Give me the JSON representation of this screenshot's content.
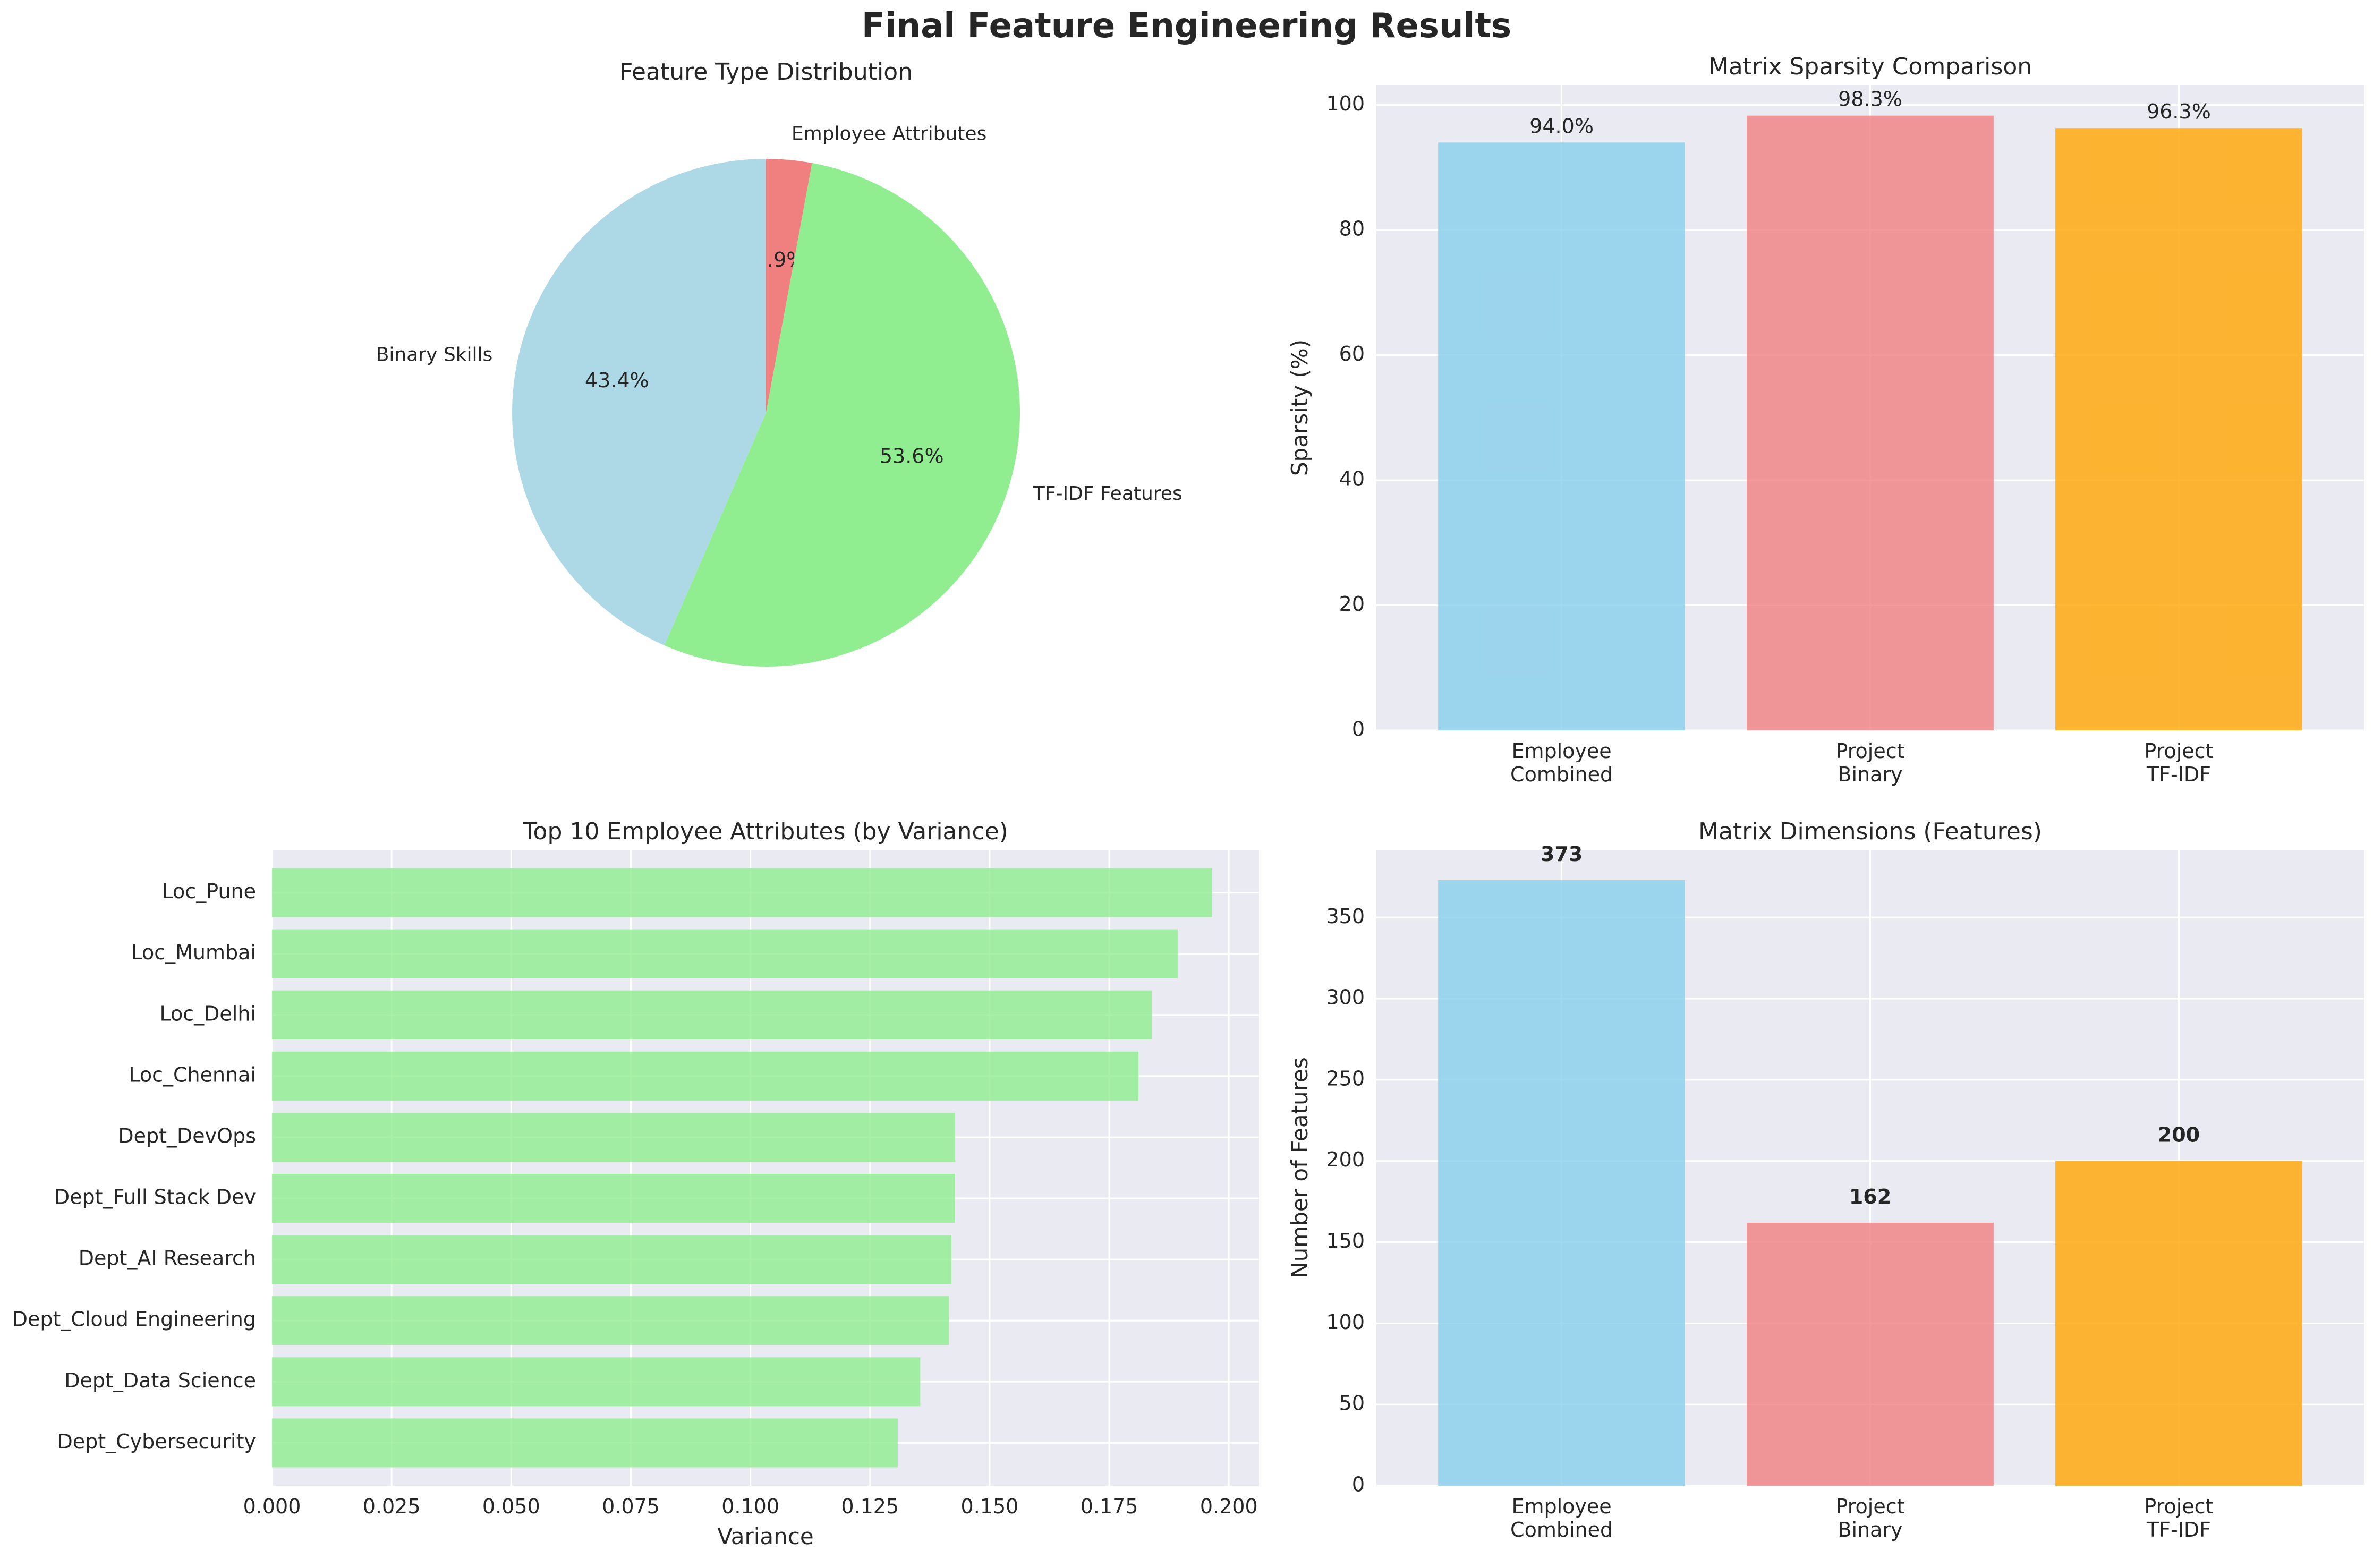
{
  "suptitle": "Final Feature Engineering Results",
  "colors": {
    "panel_bg": "#EAEAF2",
    "grid": "#FFFFFF",
    "skyblue": "#87CEEB",
    "lightcoral": "#F08080",
    "orange": "#FFA500",
    "lightgreen": "#90EE90",
    "lightblue": "#ADD8E6"
  },
  "chart_data": [
    {
      "type": "pie",
      "title": "Feature Type Distribution",
      "labels": [
        "Employee Attributes",
        "TF-IDF Features",
        "Binary Skills"
      ],
      "values": [
        2.9,
        53.6,
        43.4
      ],
      "pct_labels": [
        "2.9%",
        "53.6%",
        "43.4%"
      ],
      "colors": [
        "#F08080",
        "#90EE90",
        "#ADD8E6"
      ],
      "start_angle": 90,
      "direction": "clockwise"
    },
    {
      "type": "bar",
      "title": "Matrix Sparsity Comparison",
      "categories": [
        [
          "Employee",
          "Combined"
        ],
        [
          "Project",
          "Binary"
        ],
        [
          "Project",
          "TF-IDF"
        ]
      ],
      "values": [
        94.0,
        98.3,
        96.3
      ],
      "value_labels": [
        "94.0%",
        "98.3%",
        "96.3%"
      ],
      "colors": [
        "#87CEEB",
        "#F08080",
        "#FFA500"
      ],
      "xlabel": "",
      "ylabel": "Sparsity (%)",
      "ylim": [
        0,
        103.2
      ],
      "yticks": [
        0,
        20,
        40,
        60,
        80,
        100
      ],
      "grid": true
    },
    {
      "type": "bar",
      "orientation": "horizontal",
      "title": "Top 10 Employee Attributes (by Variance)",
      "categories": [
        "Loc_Pune",
        "Loc_Mumbai",
        "Loc_Delhi",
        "Loc_Chennai",
        "Dept_DevOps",
        "Dept_Full Stack Dev",
        "Dept_AI Research",
        "Dept_Cloud Engineering",
        "Dept_Data Science",
        "Dept_Cybersecurity"
      ],
      "values": [
        0.1965,
        0.1893,
        0.1839,
        0.1811,
        0.1428,
        0.1427,
        0.142,
        0.1415,
        0.1355,
        0.1308
      ],
      "color": "#90EE90",
      "xlabel": "Variance",
      "ylabel": "",
      "xlim": [
        0,
        0.2063
      ],
      "xticks": [
        "0.000",
        "0.025",
        "0.050",
        "0.075",
        "0.100",
        "0.125",
        "0.150",
        "0.175",
        "0.200"
      ],
      "grid": true
    },
    {
      "type": "bar",
      "title": "Matrix Dimensions (Features)",
      "categories": [
        [
          "Employee",
          "Combined"
        ],
        [
          "Project",
          "Binary"
        ],
        [
          "Project",
          "TF-IDF"
        ]
      ],
      "values": [
        373,
        162,
        200
      ],
      "value_labels": [
        "373",
        "162",
        "200"
      ],
      "colors": [
        "#87CEEB",
        "#F08080",
        "#FFA500"
      ],
      "xlabel": "",
      "ylabel": "Number of Features",
      "ylim": [
        0,
        391.65
      ],
      "yticks": [
        0,
        50,
        100,
        150,
        200,
        250,
        300,
        350
      ],
      "grid": true
    }
  ]
}
